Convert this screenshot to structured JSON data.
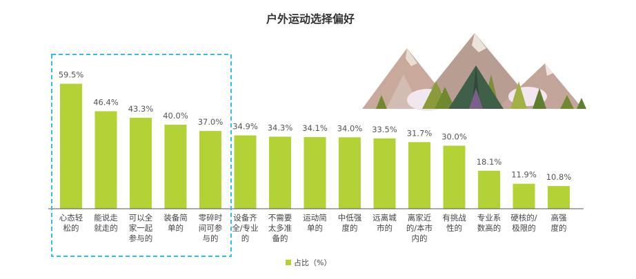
{
  "chart_data": {
    "type": "bar",
    "title": "户外运动选择偏好",
    "legend": {
      "label": "占比（%）",
      "position": "bottom"
    },
    "categories": [
      [
        "心态轻",
        "松的"
      ],
      [
        "能说走",
        "就走的"
      ],
      [
        "可以全",
        "家一起",
        "参与的"
      ],
      [
        "装备简",
        "单的"
      ],
      [
        "零碎时",
        "间可参",
        "与的"
      ],
      [
        "设备齐",
        "全/专业",
        "的"
      ],
      [
        "不需要",
        "太多准",
        "备的"
      ],
      [
        "运动简",
        "单的"
      ],
      [
        "中低强",
        "度的"
      ],
      [
        "远离城",
        "市的"
      ],
      [
        "离家近",
        "的/本市",
        "内的"
      ],
      [
        "有挑战",
        "性的"
      ],
      [
        "专业系",
        "数高的"
      ],
      [
        "硬核的/",
        "极限的"
      ],
      [
        "高强",
        "度的"
      ]
    ],
    "values": [
      59.5,
      46.4,
      43.3,
      40.0,
      37.0,
      34.9,
      34.3,
      34.1,
      34.0,
      33.5,
      31.7,
      30.0,
      18.1,
      11.9,
      10.8
    ],
    "value_labels": [
      "59.5%",
      "46.4%",
      "43.3%",
      "40.0%",
      "37.0%",
      "34.9%",
      "34.3%",
      "34.1%",
      "34.0%",
      "33.5%",
      "31.7%",
      "30.0%",
      "18.1%",
      "11.9%",
      "10.8%"
    ],
    "ylim": [
      0,
      100
    ],
    "highlight": {
      "first_n": 5,
      "style": "dashed-box",
      "color": "#2bc0e4"
    },
    "bar_color": "#b2d235",
    "grid": false
  }
}
